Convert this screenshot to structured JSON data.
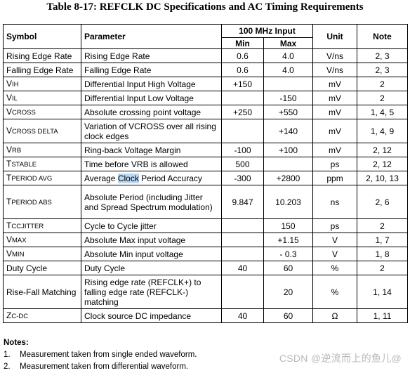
{
  "title": "Table 8-17:  REFCLK DC Specifications and AC Timing Requirements",
  "headers": {
    "symbol": "Symbol",
    "parameter": "Parameter",
    "group": "100 MHz Input",
    "min": "Min",
    "max": "Max",
    "unit": "Unit",
    "note": "Note"
  },
  "rows": [
    {
      "sym_main": "Rising Edge Rate",
      "sym_rest": "",
      "param": "Rising Edge Rate",
      "min": "0.6",
      "max": "4.0",
      "unit": "V/ns",
      "note": "2, 3"
    },
    {
      "sym_main": "Falling Edge Rate",
      "sym_rest": "",
      "param": "Falling Edge Rate",
      "min": "0.6",
      "max": "4.0",
      "unit": "V/ns",
      "note": "2, 3"
    },
    {
      "sym_main": "V",
      "sym_rest": "IH",
      "param": "Differential Input High Voltage",
      "min": "+150",
      "max": "",
      "unit": "mV",
      "note": "2"
    },
    {
      "sym_main": "V",
      "sym_rest": "IL",
      "param": "Differential Input Low Voltage",
      "min": "",
      "max": "-150",
      "unit": "mV",
      "note": "2"
    },
    {
      "sym_main": "V",
      "sym_rest": "CROSS",
      "param": "Absolute crossing point voltage",
      "min": "+250",
      "max": "+550",
      "unit": "mV",
      "note": "1, 4, 5"
    },
    {
      "sym_main": "V",
      "sym_rest": "CROSS DELTA",
      "param_a": "Variation of V",
      "param_sc": "CROSS",
      "param_b": " over all rising clock edges",
      "min": "",
      "max": "+140",
      "unit": "mV",
      "note": "1, 4, 9"
    },
    {
      "sym_main": "V",
      "sym_rest": "RB",
      "param": "Ring-back Voltage Margin",
      "min": "-100",
      "max": "+100",
      "unit": "mV",
      "note": "2, 12"
    },
    {
      "sym_main": "T",
      "sym_rest": "STABLE",
      "param_a": "Time before V",
      "param_sc": "RB",
      "param_b": " is allowed",
      "min": "500",
      "max": "",
      "unit": "ps",
      "note": "2, 12"
    },
    {
      "sym_main": "T",
      "sym_rest": "PERIOD AVG",
      "param_a": "Average ",
      "param_hl": "Clock",
      "param_b": " Period Accuracy",
      "min": "-300",
      "max": "+2800",
      "unit": "ppm",
      "note": "2, 10, 13"
    },
    {
      "sym_main": "T",
      "sym_rest": "PERIOD ABS",
      "param": "Absolute Period (including Jitter and Spread Spectrum modulation)",
      "min": "9.847",
      "max": "10.203",
      "unit": "ns",
      "note": "2, 6"
    },
    {
      "sym_main": "T",
      "sym_rest": "CCJITTER",
      "param": "Cycle to Cycle jitter",
      "min": "",
      "max": "150",
      "unit": "ps",
      "note": "2"
    },
    {
      "sym_main": "V",
      "sym_rest": "MAX",
      "param": "Absolute Max input voltage",
      "min": "",
      "max": "+1.15",
      "unit": "V",
      "note": "1, 7"
    },
    {
      "sym_main": "V",
      "sym_rest": "MIN",
      "param": "Absolute Min input voltage",
      "min": "",
      "max": "- 0.3",
      "unit": "V",
      "note": "1, 8"
    },
    {
      "sym_main": "Duty Cycle",
      "sym_rest": "",
      "param": "Duty Cycle",
      "min": "40",
      "max": "60",
      "unit": "%",
      "note": "2"
    },
    {
      "sym_main": "Rise-Fall Matching",
      "sym_rest": "",
      "param": "Rising edge rate (REFCLK+) to falling edge rate (REFCLK-) matching",
      "min": "",
      "max": "20",
      "unit": "%",
      "note": "1, 14"
    },
    {
      "sym_main": "Z",
      "sym_rest": "C-DC",
      "param": "Clock source DC impedance",
      "min": "40",
      "max": "60",
      "unit": "Ω",
      "note": "1, 11"
    }
  ],
  "notes": {
    "label": "Notes:",
    "items": [
      {
        "num": "1.",
        "text": "Measurement taken from single ended waveform."
      },
      {
        "num": "2.",
        "text": "Measurement taken from differential waveform."
      }
    ]
  },
  "watermark": "CSDN @逆流而上的鱼儿@"
}
